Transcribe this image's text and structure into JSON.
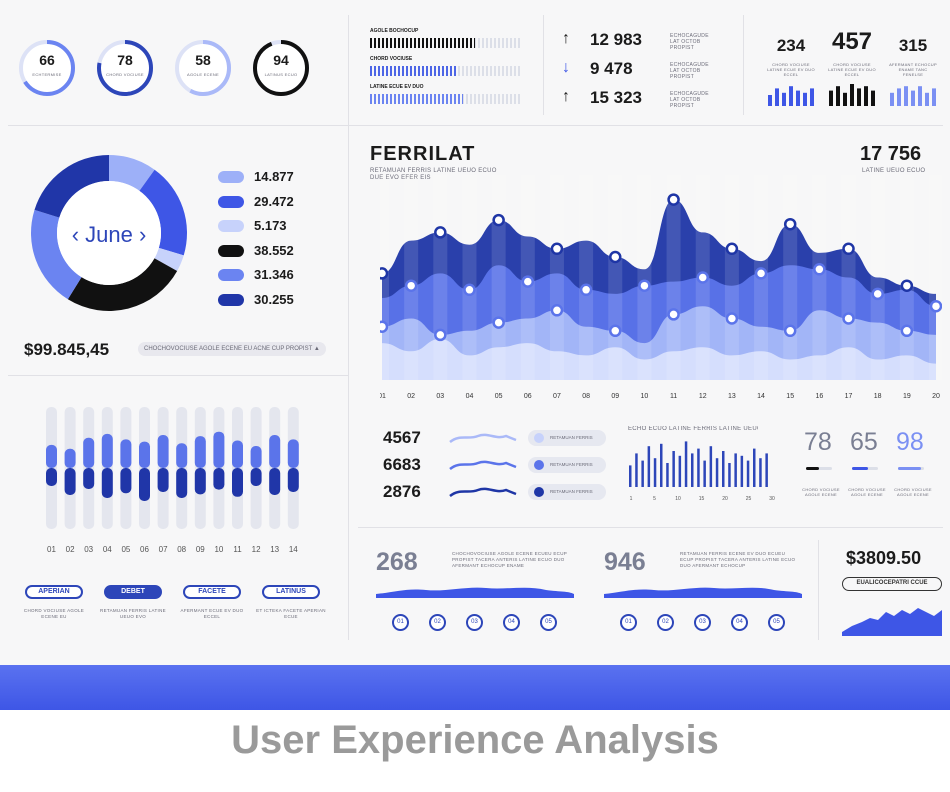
{
  "gauges": [
    {
      "value": "66",
      "caption": "ECHTERMISE",
      "pct": 0.66,
      "color": "#6b84f1"
    },
    {
      "value": "78",
      "caption": "CHORD VOCIUSE",
      "pct": 0.78,
      "color": "#2d46b9"
    },
    {
      "value": "58",
      "caption": "AGOLE ECENE",
      "pct": 0.58,
      "color": "#aab9f8"
    },
    {
      "value": "94",
      "caption": "LATINUS ECUO",
      "pct": 0.94,
      "color": "#111111"
    }
  ],
  "progress_bars": [
    {
      "label": "AGOLE BOCHOCUP",
      "fill": 0.7,
      "color": "#111111"
    },
    {
      "label": "CHORD VOCIUSE",
      "fill": 0.57,
      "color": "#4d66e6"
    },
    {
      "label": "LATINE ECUE EV DUO",
      "fill": 0.62,
      "color": "#6b84f1"
    }
  ],
  "stats": [
    {
      "arrow": "↑",
      "value": "12 983",
      "caption": "ECHOCAGUDE LAT OCTOB PROPIST"
    },
    {
      "arrow": "↓",
      "value": "9 478",
      "caption": "ECHOCAGUDE LAT OCTOB PROPIST"
    },
    {
      "arrow": "↑",
      "value": "15 323",
      "caption": "ECHOCAGUDE LAT OCTOB PROPIST"
    }
  ],
  "top_right": [
    {
      "value": "234",
      "caption": "CHORD VOCIUSE LATINE ECUE EV DUO ECCEL",
      "bars": [
        0.5,
        0.8,
        0.6,
        0.9,
        0.7,
        0.6,
        0.8
      ],
      "color": "#3e56e6"
    },
    {
      "value": "457",
      "caption": "CHORD VOCIUSE LATINE ECUE EV DUO ECCEL",
      "bars": [
        0.7,
        0.9,
        0.6,
        1.0,
        0.8,
        0.9,
        0.7
      ],
      "color": "#111111"
    },
    {
      "value": "315",
      "caption": "AFERMANT ECHOCUP ENAME TANC FENELSE",
      "bars": [
        0.6,
        0.8,
        0.9,
        0.7,
        0.9,
        0.6,
        0.8
      ],
      "color": "#7b90f3"
    }
  ],
  "donut": {
    "center_label": "‹ June ›",
    "total": "$99.845,45",
    "total_caption": "CHOCHOVOCIUSE AGOLE ECENE EU ACNE CUP PROPIST ▲",
    "items": [
      {
        "value": "14.877",
        "color": "#9db0f8",
        "share": 14.877
      },
      {
        "value": "29.472",
        "color": "#3e56e6",
        "share": 29.472
      },
      {
        "value": "5.173",
        "color": "#c7d2fb",
        "share": 5.173
      },
      {
        "value": "38.552",
        "color": "#111111",
        "share": 38.552
      },
      {
        "value": "31.346",
        "color": "#6b84f1",
        "share": 31.346
      },
      {
        "value": "30.255",
        "color": "#2036a8",
        "share": 30.255
      }
    ]
  },
  "main_chart": {
    "title": "FERRILAT",
    "subtitle": "RETAMUAN FERRIS LATINE UEUO ECUO DUE EVO EFER EIS",
    "total": "17 756",
    "total_caption": "LATINE UEUO ECUO",
    "x_labels": [
      "01",
      "02",
      "03",
      "04",
      "05",
      "06",
      "07",
      "08",
      "09",
      "10",
      "11",
      "12",
      "13",
      "14",
      "15",
      "16",
      "17",
      "18",
      "19",
      "20"
    ],
    "series": [
      {
        "color": "#1f36a6",
        "values": [
          52,
          68,
          72,
          66,
          78,
          70,
          64,
          68,
          60,
          54,
          88,
          72,
          64,
          58,
          76,
          62,
          64,
          50,
          46,
          42
        ]
      },
      {
        "color": "#5b74ea",
        "values": [
          40,
          46,
          52,
          44,
          56,
          48,
          52,
          44,
          42,
          46,
          48,
          50,
          46,
          52,
          56,
          54,
          50,
          42,
          44,
          36
        ]
      },
      {
        "color": "#a7b8f8",
        "values": [
          26,
          30,
          22,
          24,
          28,
          30,
          34,
          26,
          24,
          18,
          32,
          36,
          30,
          26,
          24,
          34,
          30,
          28,
          24,
          22
        ]
      },
      {
        "color": "#d8e0fd",
        "values": [
          18,
          14,
          20,
          12,
          16,
          18,
          14,
          12,
          16,
          10,
          14,
          16,
          12,
          14,
          10,
          12,
          16,
          10,
          12,
          8
        ]
      }
    ],
    "y_max": 100
  },
  "vertical_bars": {
    "x_labels": [
      "01",
      "02",
      "03",
      "04",
      "05",
      "06",
      "07",
      "08",
      "09",
      "10",
      "11",
      "12",
      "13",
      "14"
    ],
    "items": [
      [
        0.42,
        0.5,
        0.3
      ],
      [
        0.35,
        0.7,
        0.45
      ],
      [
        0.55,
        0.82,
        0.35
      ],
      [
        0.62,
        0.6,
        0.5
      ],
      [
        0.52,
        0.9,
        0.42
      ],
      [
        0.48,
        0.75,
        0.55
      ],
      [
        0.6,
        0.85,
        0.4
      ],
      [
        0.45,
        0.68,
        0.5
      ],
      [
        0.58,
        0.62,
        0.44
      ],
      [
        0.66,
        0.88,
        0.36
      ],
      [
        0.5,
        0.72,
        0.48
      ],
      [
        0.4,
        0.55,
        0.3
      ],
      [
        0.6,
        0.8,
        0.45
      ],
      [
        0.52,
        0.68,
        0.4
      ]
    ]
  },
  "tabs": [
    {
      "label": "APERIAN",
      "caption": "CHORD VOCIUSE AGOLE ECENE EU",
      "active": false
    },
    {
      "label": "DEBET",
      "caption": "RETAMUAN FERRIS LATINE UEUO EVO",
      "active": true
    },
    {
      "label": "FACETE",
      "caption": "AFERMANT ECUE EV DUO ECCEL",
      "active": false
    },
    {
      "label": "LATINUS",
      "caption": "ET ICTEKA FACETE APERIAN ECUE",
      "active": false
    }
  ],
  "mid_stats": {
    "rows": [
      {
        "value": "4567",
        "tag": "RETAMUAN FERRIS",
        "wave_color": "#aab9f8",
        "dot": "#c7d2fb"
      },
      {
        "value": "6683",
        "tag": "RETAMUAN FERRIS",
        "wave_color": "#5b74ea",
        "dot": "#5b74ea"
      },
      {
        "value": "2876",
        "tag": "RETAMUAN FERRIS",
        "wave_color": "#1f36a6",
        "dot": "#1f36a6"
      }
    ],
    "bar_caption": "ECHO ECUO LATINE FERRIS LATINE UEUO DUO",
    "bar_values": [
      0.45,
      0.7,
      0.55,
      0.85,
      0.6,
      0.9,
      0.5,
      0.75,
      0.65,
      0.95,
      0.7,
      0.8,
      0.55,
      0.85,
      0.6,
      0.75,
      0.5,
      0.7,
      0.65,
      0.55,
      0.8,
      0.6,
      0.7
    ],
    "bar_labels": [
      "1",
      "5",
      "10",
      "15",
      "20",
      "25",
      "30"
    ],
    "big_numbers": [
      {
        "value": "78",
        "caption": "CHORD VOCIUSE AGOLE ECENE",
        "line": "#111111",
        "fill": 0.5
      },
      {
        "value": "65",
        "caption": "CHORD VOCIUSE AGOLE ECENE",
        "line": "#3e56e6",
        "fill": 0.6
      },
      {
        "value": "98",
        "caption": "CHORD VOCIUSE AGOLE ECENE",
        "line": "#7b90f3",
        "fill": 0.9
      }
    ]
  },
  "bottom_panels": [
    {
      "value": "268",
      "text": "CHOCHOVOCIUSE AGOLE ECENE ECUEU ECUP PROPIST TACERA ANTERIS LATINE ECUO DUO AFERMANT ECHOCUP ENAME",
      "circles": [
        "01",
        "02",
        "03",
        "04",
        "05"
      ]
    },
    {
      "value": "946",
      "text": "RETAMUAN FERRIS ECENE EV DUO ECUEU ECUP PROPIST TACERA ANTERIS LATINE ECUO DUO AFERMANT ECHOCUP",
      "circles": [
        "01",
        "02",
        "03",
        "04",
        "05"
      ]
    }
  ],
  "final_panel": {
    "value": "$3809.50",
    "button": "EUALICOCEPATRI CCUE"
  },
  "caption": "User Experience Analysis"
}
